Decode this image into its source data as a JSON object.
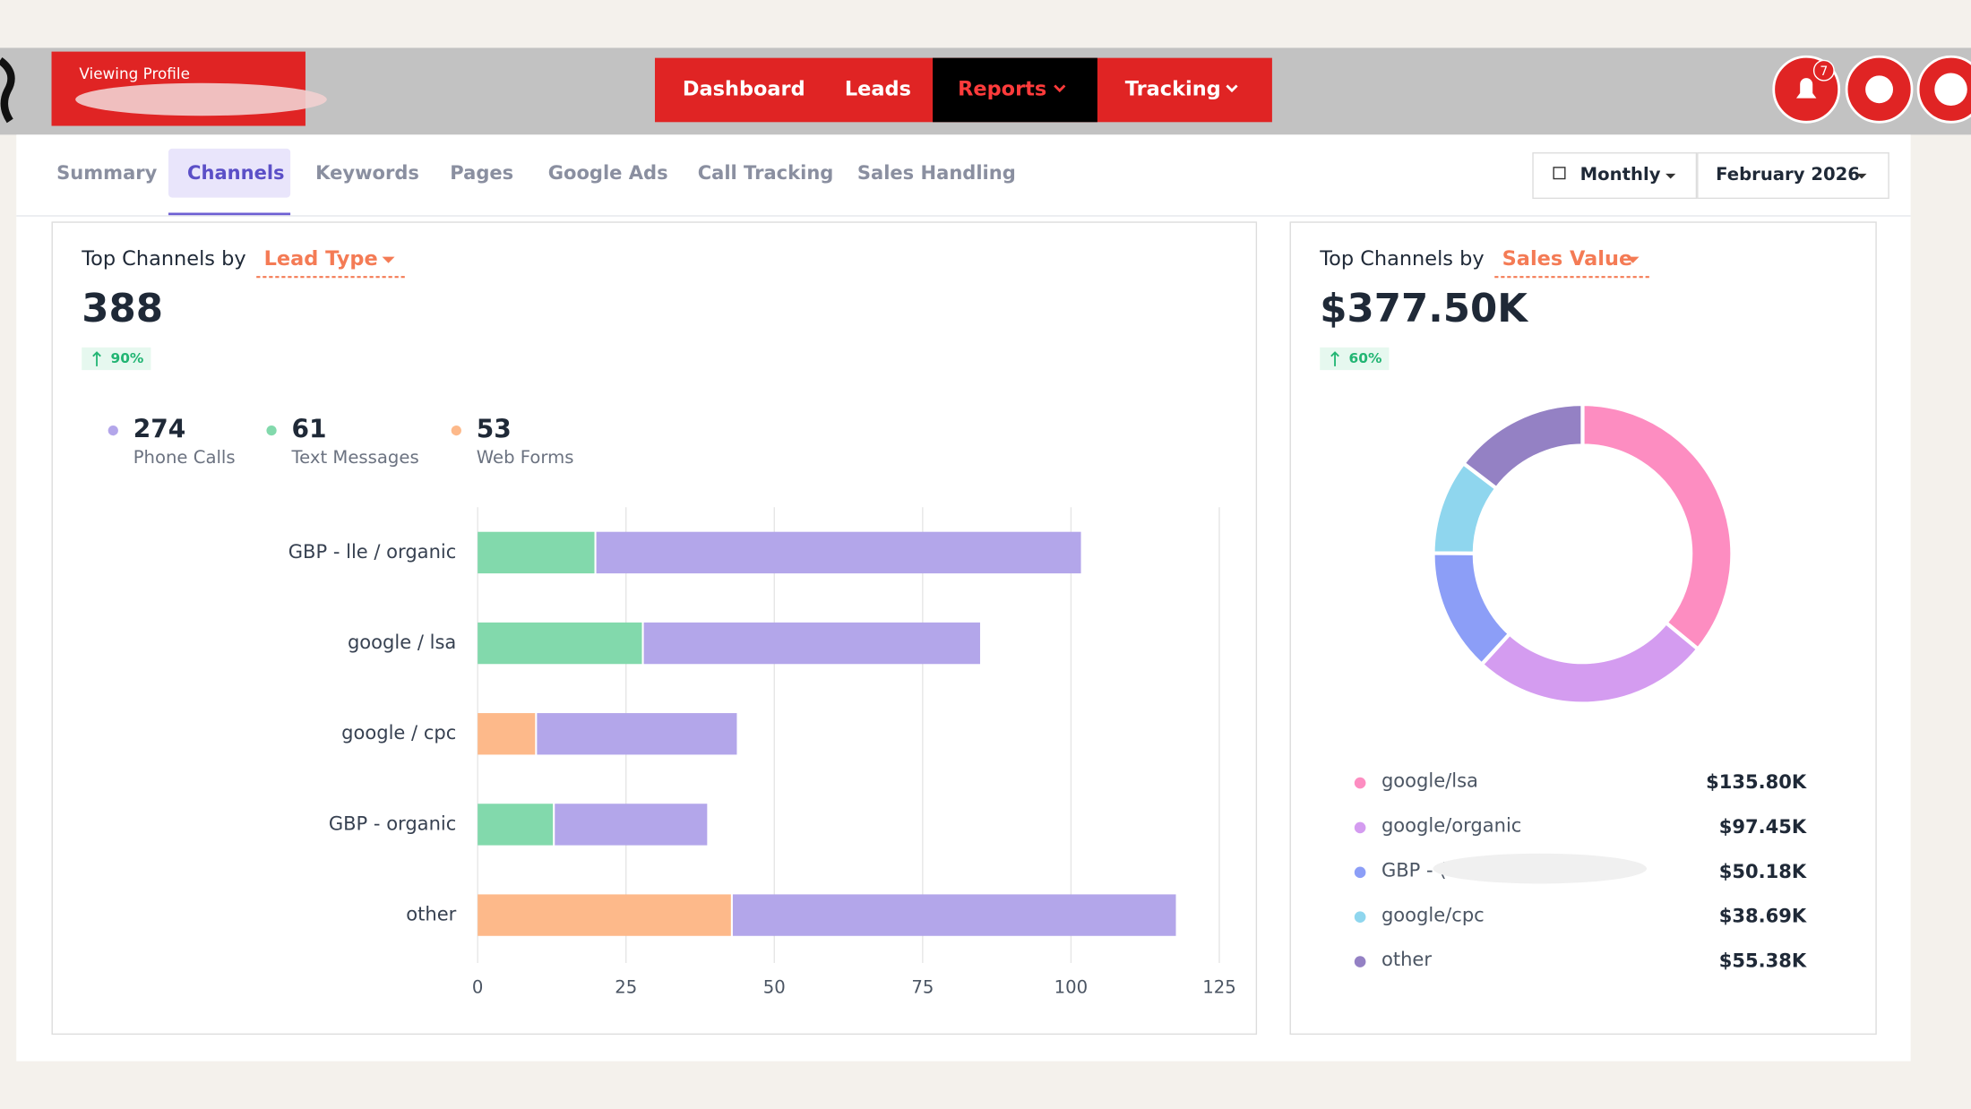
{
  "header": {
    "profile_label": "Viewing Profile",
    "nav": [
      "Dashboard",
      "Leads",
      "Reports",
      "Tracking"
    ],
    "notifications": "7"
  },
  "tabs": [
    "Summary",
    "Channels",
    "Keywords",
    "Pages",
    "Google Ads",
    "Call Tracking",
    "Sales Handling"
  ],
  "filters": {
    "period": "Monthly",
    "date": "February 2026"
  },
  "chart_data": [
    {
      "type": "bar",
      "orientation": "horizontal",
      "stacked": true,
      "title": "Top Channels by",
      "selector": "Lead Type",
      "total": 388,
      "change": "90%",
      "categories": [
        "GBP - lle / organic",
        "google / lsa",
        "google / cpc",
        "GBP - organic",
        "other"
      ],
      "series": [
        {
          "name": "Phone Calls",
          "color": "#b3a6ea",
          "total": 274,
          "values": [
            82,
            57,
            34,
            26,
            75
          ]
        },
        {
          "name": "Text Messages",
          "color": "#82d9ac",
          "total": 61,
          "values": [
            20,
            28,
            null,
            13,
            null
          ]
        },
        {
          "name": "Web Forms",
          "color": "#fdb98a",
          "total": 53,
          "values": [
            null,
            null,
            10,
            null,
            43
          ]
        }
      ],
      "xlim": [
        0,
        125
      ],
      "xticks": [
        0,
        25,
        50,
        75,
        100,
        125
      ],
      "grid": true
    },
    {
      "type": "pie",
      "donut": true,
      "title": "Top Channels by",
      "selector": "Sales Value",
      "total": "$377.50K",
      "change": "60%",
      "categories": [
        "google/lsa",
        "google/organic",
        "GBP - (",
        "google/cpc",
        "other"
      ],
      "values": [
        135.8,
        97.45,
        50.18,
        38.69,
        55.38
      ],
      "value_labels": [
        "$135.80K",
        "$97.45K",
        "$50.18K",
        "$38.69K",
        "$55.38K"
      ],
      "colors": [
        "#fd8dc1",
        "#d49cf0",
        "#8c9ef7",
        "#8fd6ee",
        "#9481c4"
      ]
    }
  ]
}
